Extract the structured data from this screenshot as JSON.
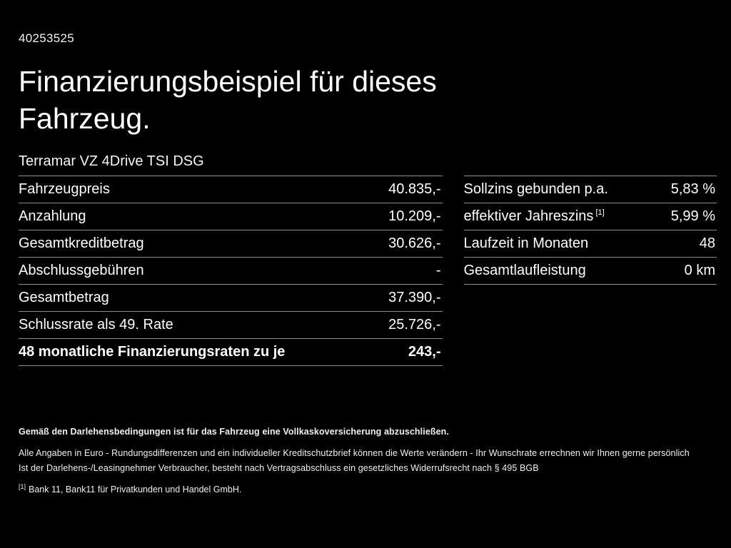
{
  "page": {
    "id": "40253525",
    "title": "Finanzierungsbeispiel für dieses Fahrzeug.",
    "vehicle": "Terramar VZ 4Drive TSI DSG"
  },
  "left_table": {
    "rows": [
      {
        "label": "Fahrzeugpreis",
        "value": "40.835,-"
      },
      {
        "label": "Anzahlung",
        "value": "10.209,-"
      },
      {
        "label": "Gesamtkreditbetrag",
        "value": "30.626,-"
      },
      {
        "label": "Abschlussgebühren",
        "value": "-"
      },
      {
        "label": "Gesamtbetrag",
        "value": "37.390,-"
      },
      {
        "label": "Schlussrate als 49. Rate",
        "value": "25.726,-"
      },
      {
        "label": "48 monatliche Finanzierungsraten zu je",
        "value": "243,-"
      }
    ]
  },
  "right_table": {
    "rows": [
      {
        "label": "Sollzins gebunden p.a.",
        "sup": "",
        "value": "5,83 %"
      },
      {
        "label": "effektiver Jahreszins",
        "sup": "[1]",
        "value": "5,99 %"
      },
      {
        "label": "Laufzeit in Monaten",
        "sup": "",
        "value": "48"
      },
      {
        "label": "Gesamtlaufleistung",
        "sup": "",
        "value": "0 km"
      }
    ]
  },
  "footnotes": {
    "line_bold": "Gemäß den Darlehensbedingungen ist für das Fahrzeug eine Vollkaskoversicherung abzuschließen.",
    "line2": "Alle Angaben in Euro - Rundungsdifferenzen und ein individueller Kreditschutzbrief können die Werte verändern - Ihr Wunschrate errechnen wir Ihnen gerne persönlich",
    "line3": "Ist der Darlehens-/Leasingnehmer Verbraucher, besteht nach Vertragsabschluss ein gesetzliches Widerrufsrecht nach § 495 BGB",
    "ref_marker": "[1]",
    "ref_text": "Bank 11, Bank11 für Privatkunden und Handel GmbH."
  }
}
